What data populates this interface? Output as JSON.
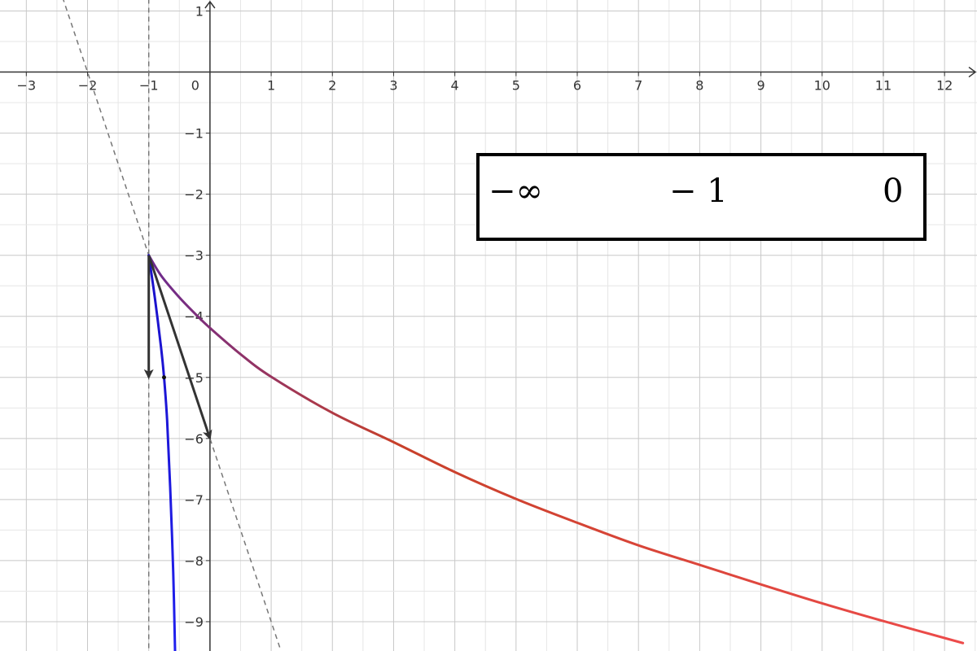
{
  "chart_data": {
    "type": "line",
    "xlim": [
      -3.43,
      12.53
    ],
    "ylim": [
      -9.48,
      1.18
    ],
    "grid": true,
    "x_ticks": [
      -3,
      -2,
      -1,
      0,
      1,
      2,
      3,
      4,
      5,
      6,
      7,
      8,
      9,
      10,
      11,
      12
    ],
    "x_tick_labels": [
      "−3",
      "−2",
      "−1",
      "0",
      "1",
      "2",
      "3",
      "4",
      "5",
      "6",
      "7",
      "8",
      "9",
      "10",
      "11",
      "12"
    ],
    "y_ticks": [
      1,
      -1,
      -2,
      -3,
      -4,
      -5,
      -6,
      -7,
      -8,
      -9
    ],
    "y_tick_labels": [
      "1",
      "−1",
      "−2",
      "−3",
      "−4",
      "−5",
      "−6",
      "−7",
      "−8",
      "−9"
    ],
    "curves": [
      {
        "id": "upper-curve",
        "x": [
          -1,
          -0.8,
          -0.5,
          -0.2,
          0,
          0.5,
          1,
          2,
          3,
          4,
          5,
          6,
          7,
          8,
          9,
          10,
          11,
          12.3
        ],
        "y": [
          -3,
          -3.33,
          -3.69,
          -4.0,
          -4.19,
          -4.62,
          -4.99,
          -5.58,
          -6.06,
          -6.55,
          -6.99,
          -7.38,
          -7.75,
          -8.07,
          -8.39,
          -8.7,
          -8.99,
          -9.35
        ],
        "color_start": "#6b2a8f",
        "color_mid": "#c8402a",
        "color_end": "#ee4b4b"
      },
      {
        "id": "lower-curve",
        "x": [
          -1,
          -0.9,
          -0.8,
          -0.75,
          -0.7,
          -0.65,
          -0.6,
          -0.57
        ],
        "y": [
          -3,
          -3.7,
          -4.5,
          -5.0,
          -5.7,
          -6.8,
          -8.2,
          -9.5
        ],
        "color_start": "#1a10c8",
        "color_end": "#2020ee"
      }
    ],
    "dashed_lines": [
      {
        "id": "vertical-asymptote",
        "x1": -1,
        "y1": 1.2,
        "x2": -1,
        "y2": -9.5
      },
      {
        "id": "tangent-line",
        "x1": -2.5,
        "y1": 1.5,
        "x2": 1.15,
        "y2": -9.45
      }
    ],
    "vectors": [
      {
        "id": "vector-down",
        "x1": -1,
        "y1": -3,
        "x2": -1,
        "y2": -5
      },
      {
        "id": "vector-diagonal",
        "x1": -1,
        "y1": -3,
        "x2": 0,
        "y2": -6
      }
    ],
    "points": [
      {
        "id": "point-on-lower-curve",
        "x": -0.75,
        "y": -5
      }
    ],
    "legend": {
      "placement": "top-right",
      "labels": [
        "−∞",
        "− 1",
        "0"
      ],
      "gradient_colors": [
        "#ee1a1a",
        "#6e10a8",
        "#1a00ee"
      ]
    }
  }
}
